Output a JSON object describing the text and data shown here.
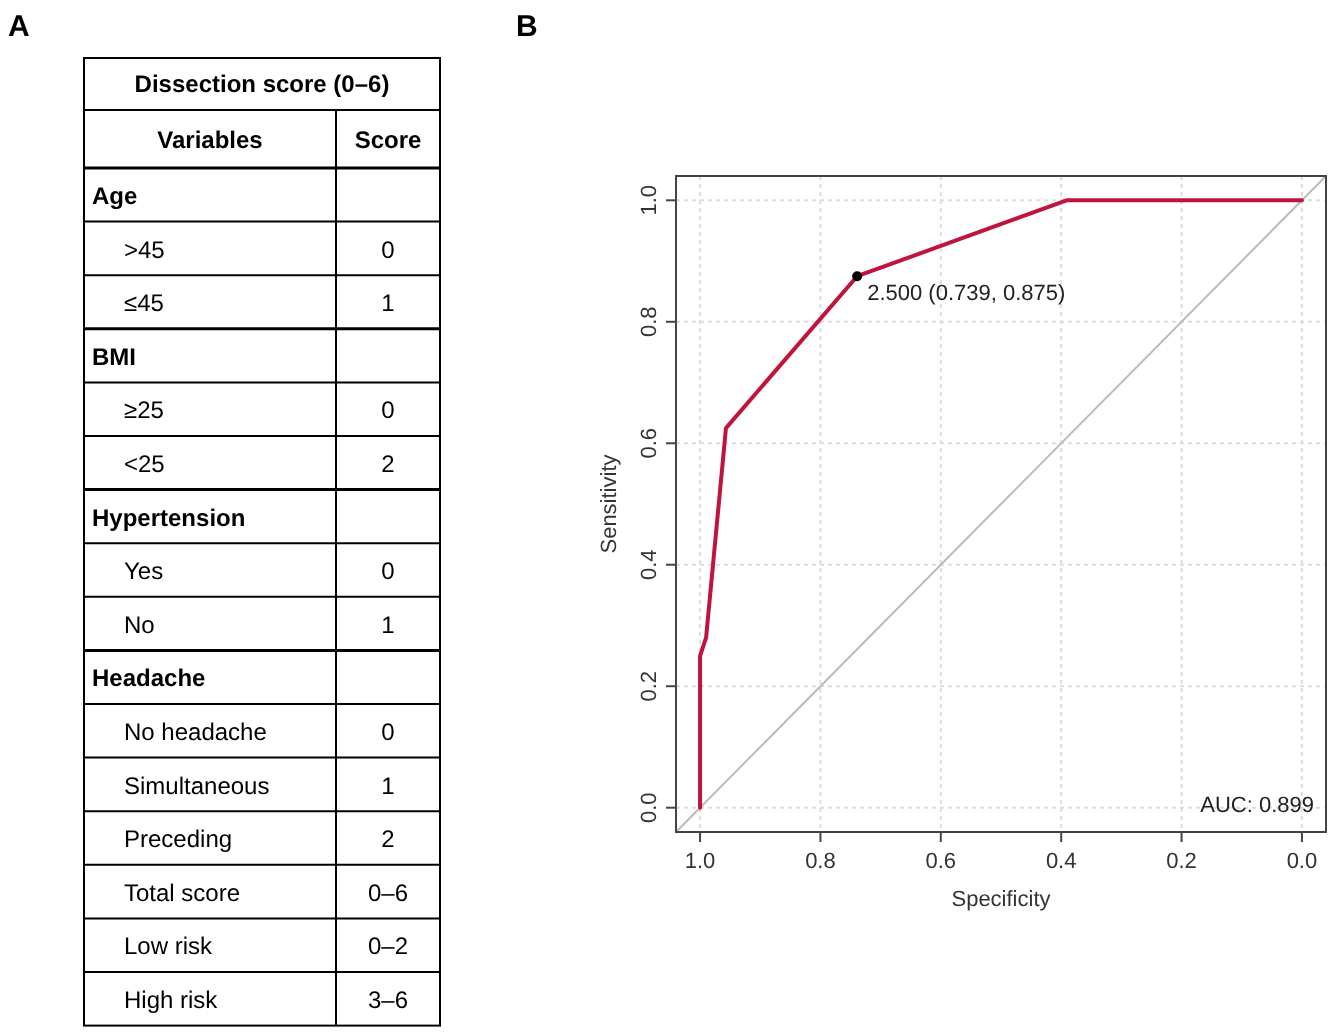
{
  "chart_data": [
    {
      "type": "other",
      "title": "Dissection score (0–6)",
      "xlabel": "Variables",
      "ylabel": "Score",
      "annotations": [
        "A"
      ],
      "categories": [
        "Age",
        ">45",
        "≤45",
        "BMI",
        "≥25",
        "<25",
        "Hypertension",
        "Yes",
        "No",
        "Headache",
        "No headache",
        "Simultaneous",
        "Preceding",
        "Total score",
        "Low risk",
        "High risk"
      ],
      "value_labels": [
        null,
        "0",
        "1",
        null,
        "0",
        "2",
        null,
        "0",
        "1",
        null,
        "0",
        "1",
        "2",
        "0–6",
        "0–2",
        "3–6"
      ]
    },
    {
      "type": "line",
      "xlabel": "Specificity",
      "ylabel": "Sensitivity",
      "xlim": [
        1.04,
        -0.04
      ],
      "ylim": [
        -0.04,
        1.04
      ],
      "xticks": [
        {
          "value": 1,
          "label": "1.0"
        },
        0.8,
        0.6,
        0.4,
        0.2,
        {
          "value": 0,
          "label": "0.0"
        }
      ],
      "yticks": [
        {
          "value": 0,
          "label": "0.0"
        },
        0.2,
        0.4,
        0.6,
        0.8,
        {
          "value": 1,
          "label": "1.0"
        }
      ],
      "grid": true,
      "series": [
        {
          "type": "line",
          "color": "#bbbbbb",
          "x": [
            1.04,
            -0.04
          ],
          "values": [
            -0.04,
            1.04
          ]
        },
        {
          "type": "line",
          "color": "#c0143c",
          "x": [
            1,
            1,
            0.99,
            0.957,
            0.739,
            0.391,
            0
          ],
          "values": [
            0,
            0.25,
            0.28,
            0.625,
            0.875,
            1,
            1
          ]
        },
        {
          "type": "scatter",
          "color": "#000000",
          "marker": "circle",
          "x": [
            0.739
          ],
          "values": [
            0.875
          ]
        }
      ],
      "annotations": [
        "B",
        {
          "text": "2.500 (0.739, 0.875)",
          "x": 0.739,
          "y": 0.875
        },
        "AUC: 0.899"
      ]
    }
  ]
}
